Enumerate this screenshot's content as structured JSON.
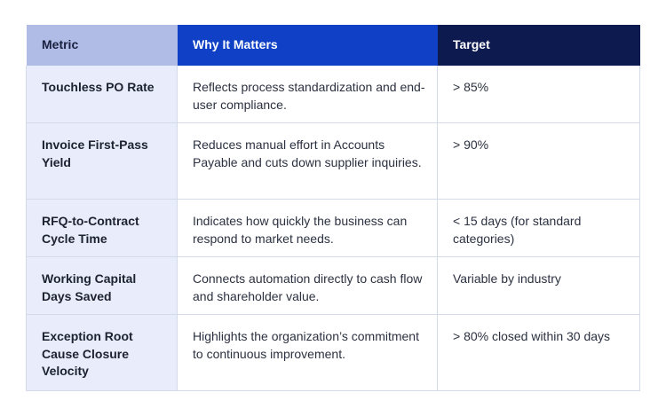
{
  "table": {
    "headers": {
      "metric": "Metric",
      "why": "Why It Matters",
      "target": "Target"
    },
    "rows": [
      {
        "metric": "Touchless PO Rate",
        "why": "Reflects process standardization and end-user compliance.",
        "target": "> 85%"
      },
      {
        "metric": "Invoice First-Pass Yield",
        "why": "Reduces manual effort in Accounts Payable and cuts down supplier inquiries.",
        "target": "> 90%"
      },
      {
        "metric": "RFQ-to-Contract Cycle Time",
        "why": "Indicates how quickly the business can respond to market needs.",
        "target": "< 15 days (for standard categories)"
      },
      {
        "metric": "Working Capital Days Saved",
        "why": "Connects automation directly to cash flow and shareholder value.",
        "target": "Variable by industry"
      },
      {
        "metric": "Exception Root Cause Closure Velocity",
        "why": "Highlights the organization’s commitment to continuous improvement.",
        "target": "> 80% closed within 30 days"
      }
    ]
  }
}
